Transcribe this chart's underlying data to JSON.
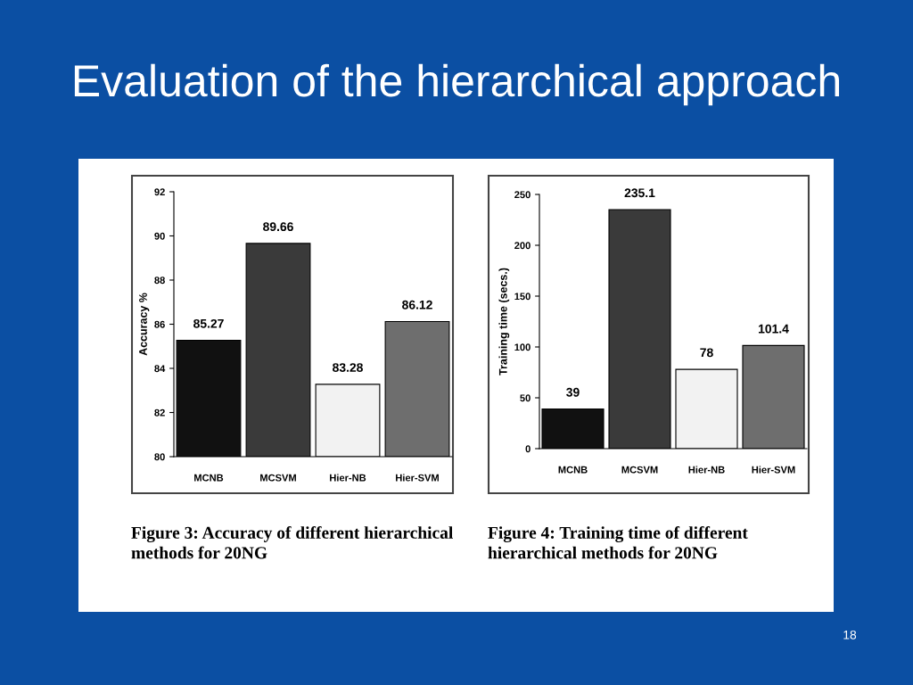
{
  "chart_data": [
    {
      "type": "bar",
      "title": "Evaluation of the hierarchical approach",
      "ylabel": "Accuracy %",
      "categories": [
        "MCNB",
        "MCSVM",
        "Hier-NB",
        "Hier-SVM"
      ],
      "values": [
        85.27,
        89.66,
        83.28,
        86.12
      ],
      "colors": [
        "#111111",
        "#3a3a3a",
        "#f2f2f2",
        "#6e6e6e"
      ],
      "ylim": [
        80,
        92
      ],
      "yticks": [
        80,
        82,
        84,
        86,
        88,
        90,
        92
      ],
      "data_labels": true,
      "annotations": [
        "Figure 3: Accuracy of different hierarchical methods for 20NG"
      ]
    },
    {
      "type": "bar",
      "ylabel": "Training time (secs.)",
      "categories": [
        "MCNB",
        "MCSVM",
        "Hier-NB",
        "Hier-SVM"
      ],
      "values": [
        39,
        235.1,
        78,
        101.4
      ],
      "colors": [
        "#111111",
        "#3a3a3a",
        "#f2f2f2",
        "#6e6e6e"
      ],
      "ylim": [
        0,
        250
      ],
      "yticks": [
        0,
        50,
        100,
        150,
        200,
        250
      ],
      "data_labels": true,
      "annotations": [
        "Figure 4: Training time of different hierarchical methods for 20NG",
        "18"
      ]
    }
  ]
}
